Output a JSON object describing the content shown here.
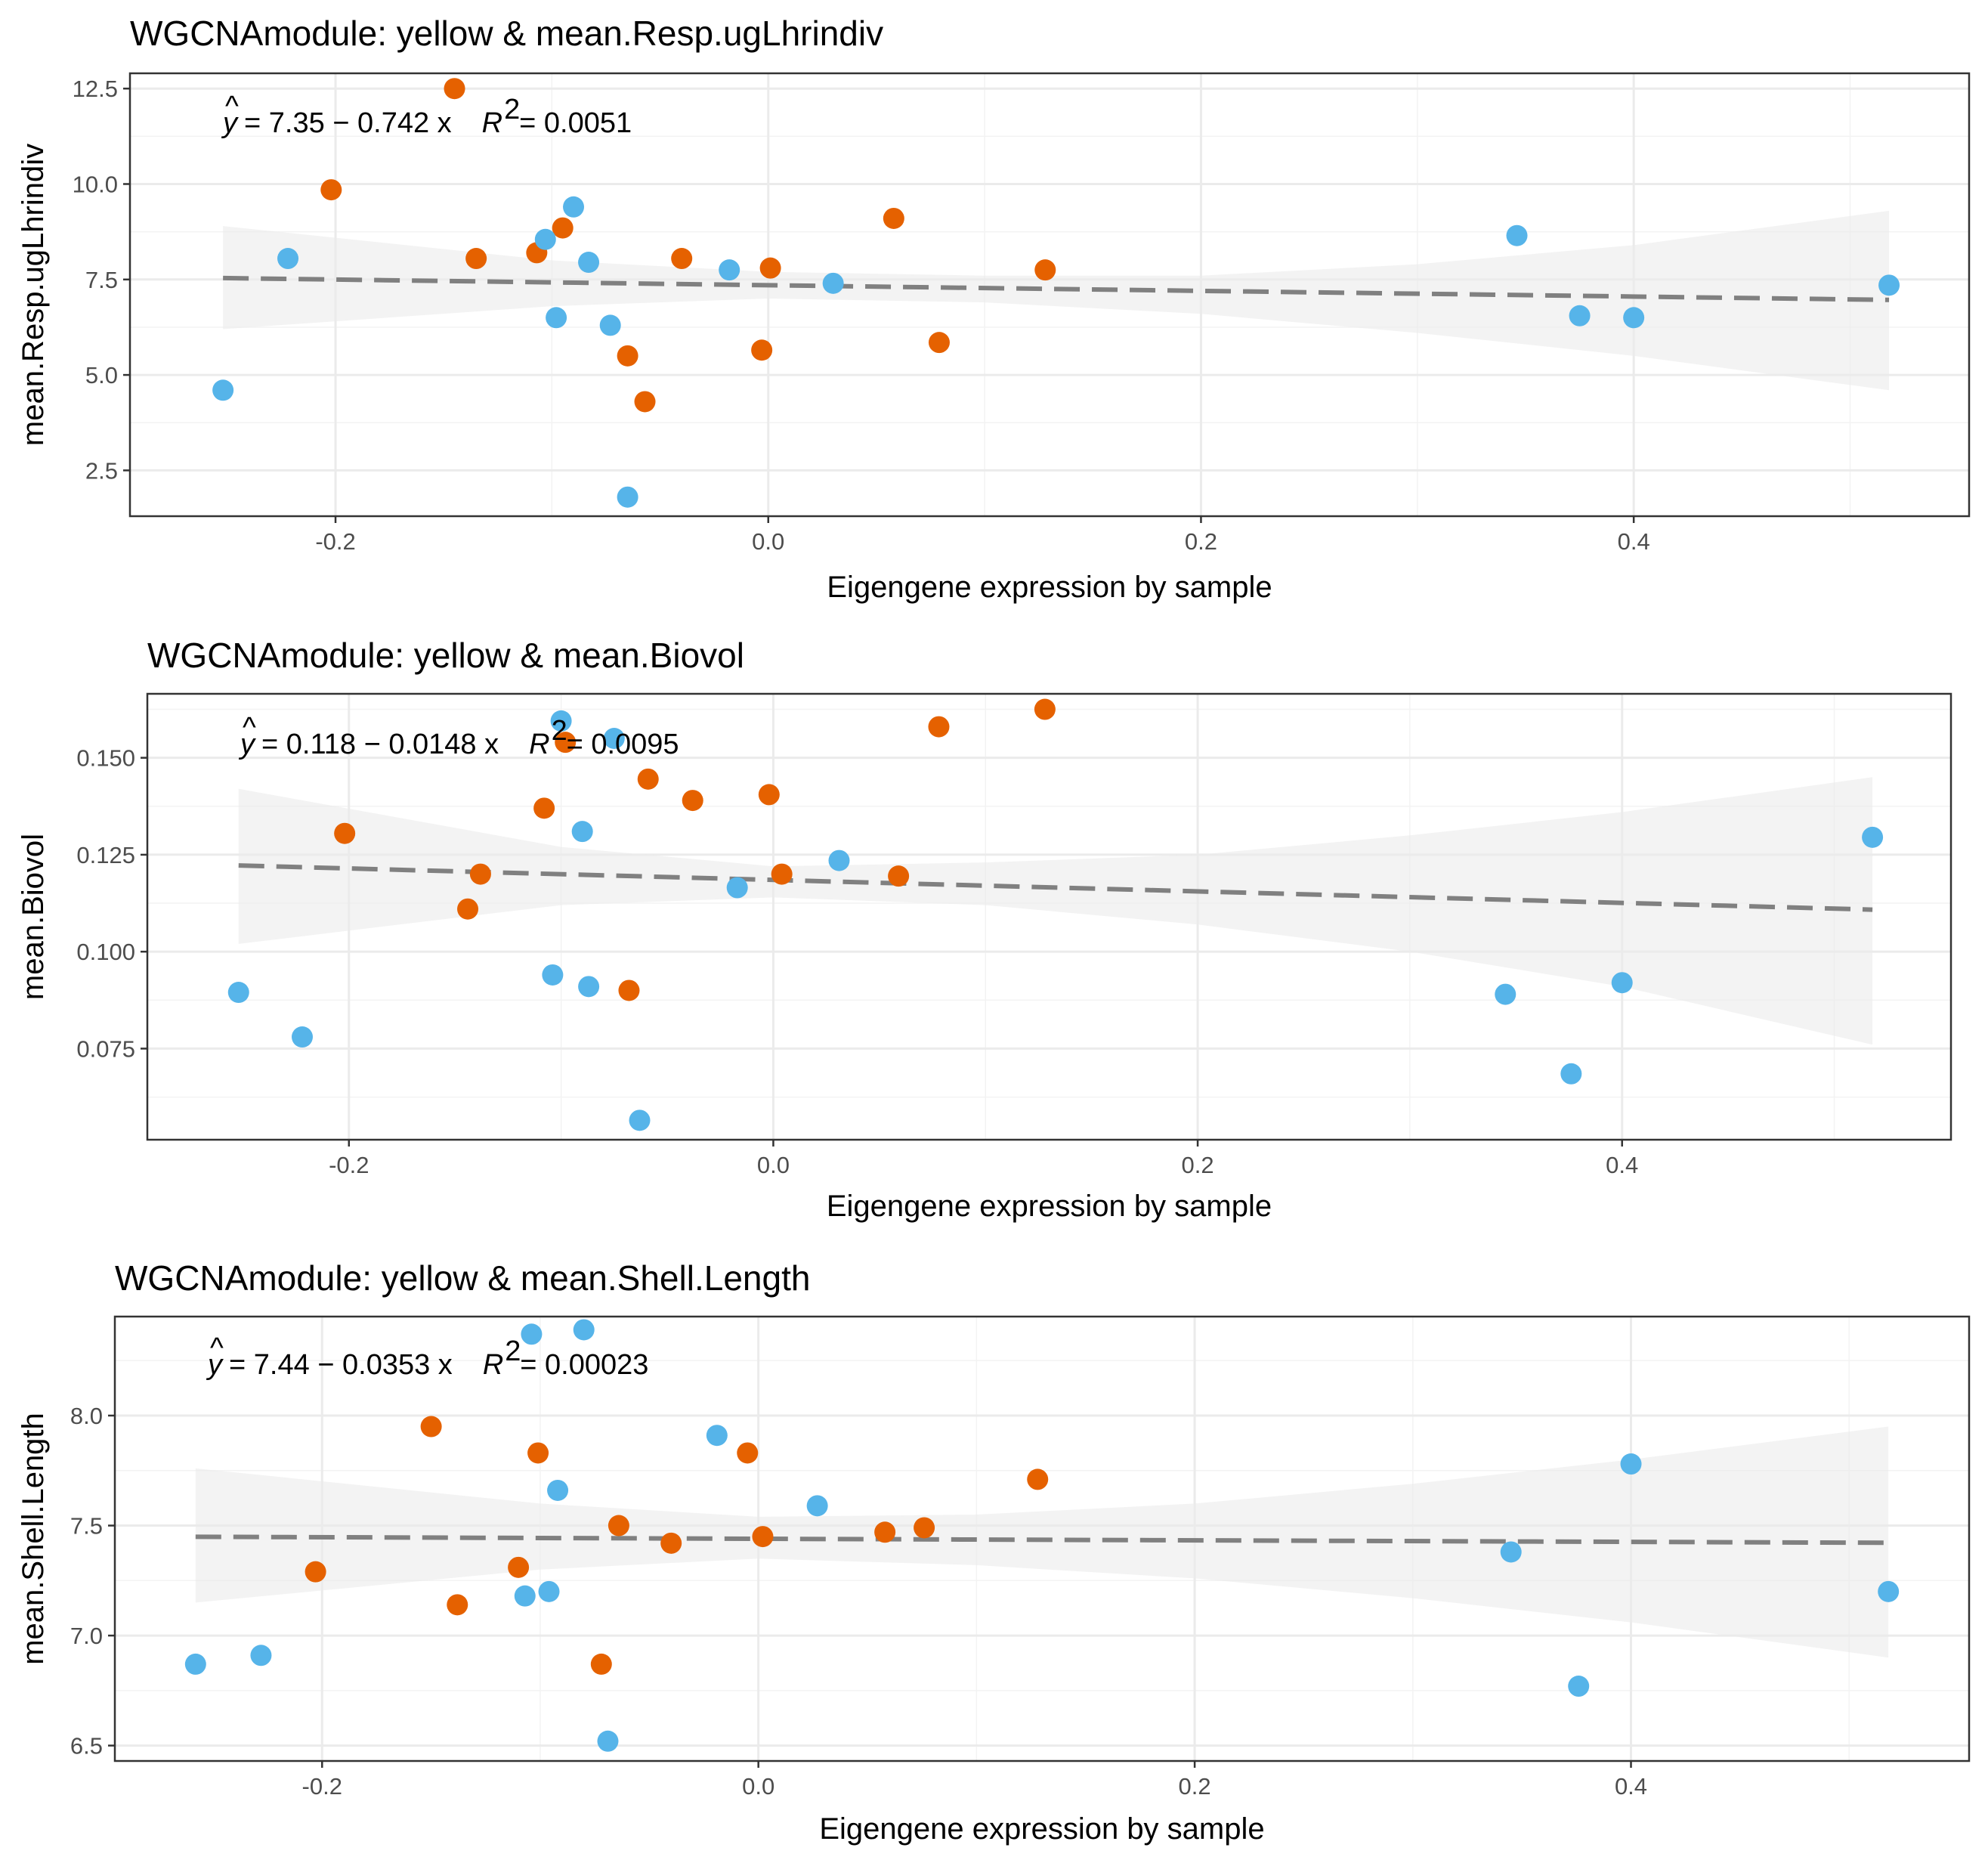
{
  "colors": {
    "group_a": "#E56100",
    "group_b": "#56B4E9",
    "fit_line": "#808080",
    "ribbon": "#EBEBEB",
    "grid_major": "#EBEBEB",
    "grid_minor": "#F3F3F3",
    "panel_border": "#333333"
  },
  "chart_data": [
    {
      "type": "scatter",
      "title": "WGCNAmodule: yellow & mean.Resp.ugLhrindiv",
      "xlabel": "Eigengene expression by sample",
      "ylabel": "mean.Resp.ugLhrindiv",
      "xlim": [
        -0.295,
        0.555
      ],
      "ylim": [
        1.3,
        12.9
      ],
      "xticks": [
        -0.2,
        0.0,
        0.2,
        0.4
      ],
      "xtick_labels": [
        "-0.2",
        "0.0",
        "0.2",
        "0.4"
      ],
      "yticks": [
        2.5,
        5.0,
        7.5,
        10.0,
        12.5
      ],
      "ytick_labels": [
        "2.5",
        "5.0",
        "7.5",
        "10.0",
        "12.5"
      ],
      "grid": true,
      "equation": {
        "yhat": "y",
        "formula": "= 7.35 − 0.742 x",
        "r2_sym": "R",
        "r2_exp": "2",
        "r2_val": "= 0.0051"
      },
      "fit": {
        "intercept": 7.35,
        "slope": -0.742,
        "x_range": [
          -0.252,
          0.518
        ]
      },
      "ribbon": {
        "x": [
          -0.252,
          -0.1,
          0.0,
          0.1,
          0.2,
          0.3,
          0.4,
          0.518
        ],
        "lower": [
          6.2,
          6.8,
          7.0,
          6.9,
          6.6,
          6.1,
          5.5,
          4.6
        ],
        "upper": [
          8.9,
          8.0,
          7.7,
          7.6,
          7.6,
          7.9,
          8.4,
          9.3
        ]
      },
      "series": [
        {
          "color": "group_a",
          "x": [
            -0.145,
            -0.202,
            -0.095,
            -0.107,
            -0.135,
            -0.04,
            0.058,
            0.001,
            0.128,
            -0.065,
            -0.003,
            0.079,
            -0.057
          ],
          "y": [
            12.5,
            9.85,
            8.85,
            8.2,
            8.05,
            8.05,
            9.1,
            7.8,
            7.75,
            5.5,
            5.65,
            5.85,
            4.3
          ]
        },
        {
          "color": "group_b",
          "x": [
            -0.252,
            -0.222,
            -0.103,
            -0.09,
            -0.083,
            -0.098,
            -0.073,
            -0.018,
            0.03,
            -0.065,
            0.346,
            0.375,
            0.4,
            0.518
          ],
          "y": [
            4.6,
            8.05,
            8.55,
            9.4,
            7.95,
            6.5,
            6.3,
            7.75,
            7.4,
            1.8,
            8.65,
            6.55,
            6.5,
            7.35
          ]
        }
      ]
    },
    {
      "type": "scatter",
      "title": "WGCNAmodule: yellow & mean.Biovol",
      "xlabel": "Eigengene expression by sample",
      "ylabel": "mean.Biovol",
      "xlim": [
        -0.295,
        0.555
      ],
      "ylim": [
        0.0515,
        0.1665
      ],
      "xticks": [
        -0.2,
        0.0,
        0.2,
        0.4
      ],
      "xtick_labels": [
        "-0.2",
        "0.0",
        "0.2",
        "0.4"
      ],
      "yticks": [
        0.075,
        0.1,
        0.125,
        0.15
      ],
      "ytick_labels": [
        "0.075",
        "0.100",
        "0.125",
        "0.150"
      ],
      "grid": true,
      "equation": {
        "yhat": "y",
        "formula": "= 0.118 − 0.0148 x",
        "r2_sym": "R",
        "r2_exp": "2",
        "r2_val": "= 0.0095"
      },
      "fit": {
        "intercept": 0.1185,
        "slope": -0.0148,
        "x_range": [
          -0.252,
          0.518
        ]
      },
      "ribbon": {
        "x": [
          -0.252,
          -0.1,
          0.0,
          0.1,
          0.2,
          0.3,
          0.4,
          0.518
        ],
        "lower": [
          0.102,
          0.112,
          0.114,
          0.112,
          0.107,
          0.1,
          0.091,
          0.076
        ],
        "upper": [
          0.142,
          0.127,
          0.122,
          0.123,
          0.125,
          0.13,
          0.136,
          0.145
        ]
      },
      "series": [
        {
          "color": "group_a",
          "x": [
            -0.202,
            -0.138,
            -0.144,
            -0.108,
            -0.098,
            -0.059,
            -0.038,
            -0.002,
            0.004,
            0.059,
            0.078,
            0.128,
            -0.068
          ],
          "y": [
            0.1305,
            0.12,
            0.111,
            0.137,
            0.154,
            0.1445,
            0.139,
            0.1405,
            0.12,
            0.1195,
            0.158,
            0.1625,
            0.09
          ]
        },
        {
          "color": "group_b",
          "x": [
            -0.252,
            -0.222,
            -0.1,
            -0.075,
            -0.09,
            -0.104,
            -0.087,
            -0.063,
            -0.017,
            0.031,
            0.345,
            0.376,
            0.4,
            0.518
          ],
          "y": [
            0.0895,
            0.078,
            0.1595,
            0.155,
            0.131,
            0.094,
            0.091,
            0.0565,
            0.1165,
            0.1235,
            0.089,
            0.0685,
            0.092,
            0.1295
          ]
        }
      ]
    },
    {
      "type": "scatter",
      "title": "WGCNAmodule: yellow & mean.Shell.Length",
      "xlabel": "Eigengene expression by sample",
      "ylabel": "mean.Shell.Length",
      "xlim": [
        -0.295,
        0.555
      ],
      "ylim": [
        6.43,
        8.45
      ],
      "xticks": [
        -0.2,
        0.0,
        0.2,
        0.4
      ],
      "xtick_labels": [
        "-0.2",
        "0.0",
        "0.2",
        "0.4"
      ],
      "yticks": [
        6.5,
        7.0,
        7.5,
        8.0
      ],
      "ytick_labels": [
        "6.5",
        "7.0",
        "7.5",
        "8.0"
      ],
      "grid": true,
      "equation": {
        "yhat": "y",
        "formula": "= 7.44 − 0.0353 x",
        "r2_sym": "R",
        "r2_exp": "2",
        "r2_val": "= 0.00023"
      },
      "fit": {
        "intercept": 7.44,
        "slope": -0.0353,
        "x_range": [
          -0.258,
          0.518
        ]
      },
      "ribbon": {
        "x": [
          -0.258,
          -0.1,
          0.0,
          0.1,
          0.2,
          0.3,
          0.4,
          0.518
        ],
        "lower": [
          7.15,
          7.3,
          7.35,
          7.32,
          7.26,
          7.17,
          7.06,
          6.9
        ],
        "upper": [
          7.76,
          7.6,
          7.54,
          7.55,
          7.6,
          7.69,
          7.8,
          7.95
        ]
      },
      "series": [
        {
          "color": "group_a",
          "x": [
            -0.15,
            -0.203,
            -0.138,
            -0.11,
            -0.101,
            -0.064,
            -0.04,
            -0.005,
            0.002,
            0.058,
            0.076,
            0.128,
            -0.072
          ],
          "y": [
            7.95,
            7.29,
            7.14,
            7.31,
            7.83,
            7.5,
            7.42,
            7.83,
            7.45,
            7.47,
            7.49,
            7.71,
            6.87
          ]
        },
        {
          "color": "group_b",
          "x": [
            -0.258,
            -0.228,
            -0.104,
            -0.08,
            -0.092,
            -0.096,
            -0.107,
            -0.069,
            -0.019,
            0.027,
            0.345,
            0.376,
            0.4,
            0.518
          ],
          "y": [
            6.87,
            6.91,
            8.37,
            8.39,
            7.66,
            7.2,
            7.18,
            6.52,
            7.91,
            7.59,
            7.38,
            6.77,
            7.78,
            7.2
          ]
        }
      ]
    }
  ]
}
